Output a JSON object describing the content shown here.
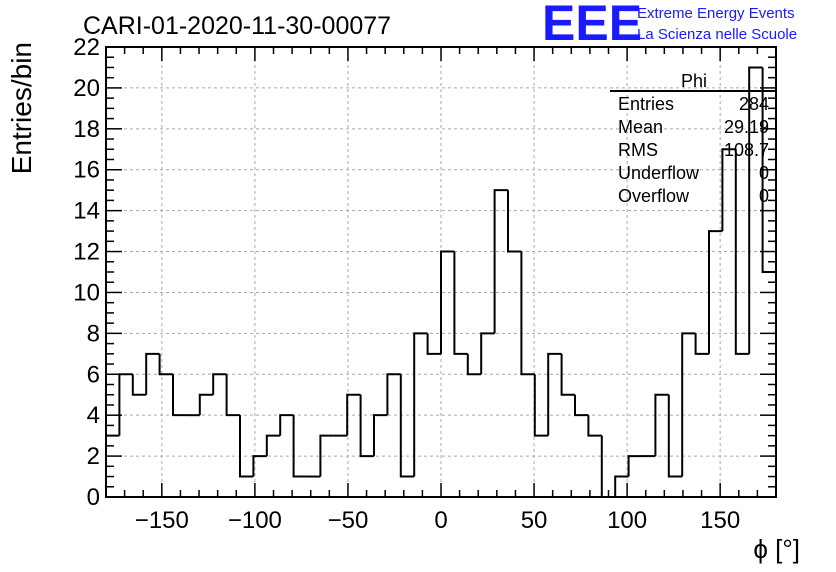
{
  "header": {
    "run_title": "CARI-01-2020-11-30-00077",
    "logo_text": "EEE",
    "logo_line1": "Extreme Energy Events",
    "logo_line2": "La Scienza nelle Scuole",
    "logo_color": "#1a1aff"
  },
  "stats_box": {
    "title": "Phi",
    "rows": [
      {
        "label": "Entries",
        "value": "284"
      },
      {
        "label": "Mean",
        "value": "29.19"
      },
      {
        "label": "RMS",
        "value": "108.7"
      },
      {
        "label": "Underflow",
        "value": "0"
      },
      {
        "label": "Overflow",
        "value": "0"
      }
    ]
  },
  "chart_data": {
    "type": "bar",
    "style": "step-histogram",
    "title": "",
    "xlabel": "ϕ [°]",
    "ylabel": "Entries/bin",
    "xlim": [
      -180,
      180
    ],
    "ylim": [
      0,
      22
    ],
    "bin_width": 7.2,
    "x_ticks": [
      -150,
      -100,
      -50,
      0,
      50,
      100,
      150
    ],
    "x_tick_labels": [
      "−150",
      "−100",
      "−50",
      "0",
      "50",
      "100",
      "150"
    ],
    "y_ticks": [
      0,
      2,
      4,
      6,
      8,
      10,
      12,
      14,
      16,
      18,
      20,
      22
    ],
    "y_tick_labels": [
      "0",
      "2",
      "4",
      "6",
      "8",
      "10",
      "12",
      "14",
      "16",
      "18",
      "20",
      "22"
    ],
    "grid": true,
    "values": [
      3,
      6,
      5,
      7,
      6,
      4,
      4,
      5,
      6,
      4,
      1,
      2,
      3,
      4,
      1,
      1,
      3,
      3,
      5,
      2,
      4,
      6,
      1,
      8,
      7,
      12,
      7,
      6,
      8,
      15,
      12,
      6,
      3,
      7,
      5,
      4,
      3,
      0,
      1,
      2,
      2,
      5,
      1,
      8,
      7,
      13,
      17,
      7,
      21,
      11
    ],
    "line_color": "#000000",
    "grid_color": "#aaaaaa"
  }
}
